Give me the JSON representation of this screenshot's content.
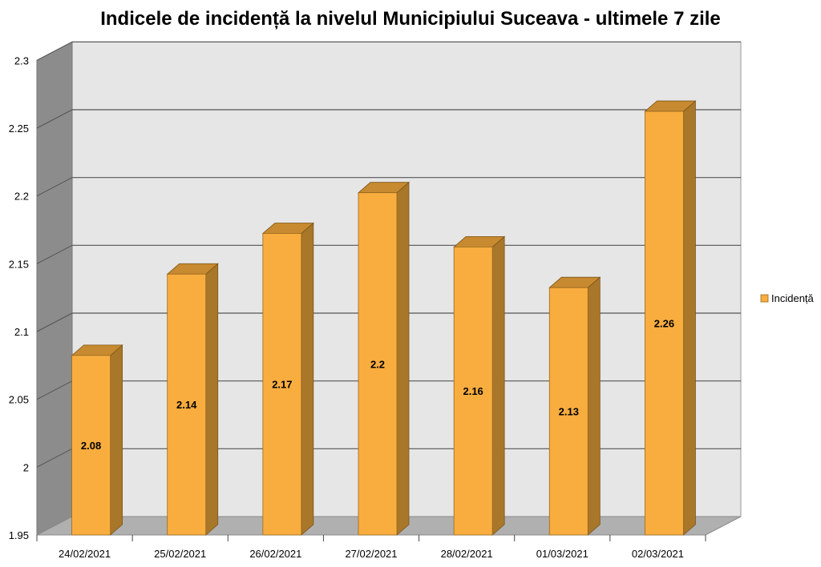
{
  "chart_data": {
    "type": "bar",
    "title": "Indicele de incidență la nivelul Municipiului Suceava - ultimele 7 zile",
    "xlabel": "",
    "ylabel": "",
    "categories": [
      "24/02/2021",
      "25/02/2021",
      "26/02/2021",
      "27/02/2021",
      "28/02/2021",
      "01/03/2021",
      "02/03/2021"
    ],
    "series": [
      {
        "name": "Incidență",
        "values": [
          2.08,
          2.14,
          2.17,
          2.2,
          2.16,
          2.13,
          2.26
        ],
        "color": "#F9AD3F"
      }
    ],
    "data_labels": [
      "2.08",
      "2.14",
      "2.17",
      "2.2",
      "2.16",
      "2.13",
      "2.26"
    ],
    "ylim": [
      1.95,
      2.3
    ],
    "yticks": [
      1.95,
      2,
      2.05,
      2.1,
      2.15,
      2.2,
      2.25,
      2.3
    ],
    "ytick_labels": [
      "1.95",
      "2",
      "2.05",
      "2.1",
      "2.15",
      "2.2",
      "2.25",
      "2.3"
    ],
    "grid": true,
    "legend_position": "right",
    "style": "3d-column"
  },
  "colors": {
    "bar_front": "#F9AD3F",
    "bar_side": "#A8772A",
    "bar_top": "#C88A30",
    "wall": "#E6E6E6",
    "left_wall": "#8C8C8C",
    "floor": "#B0B0B0",
    "gridline": "#555555"
  }
}
